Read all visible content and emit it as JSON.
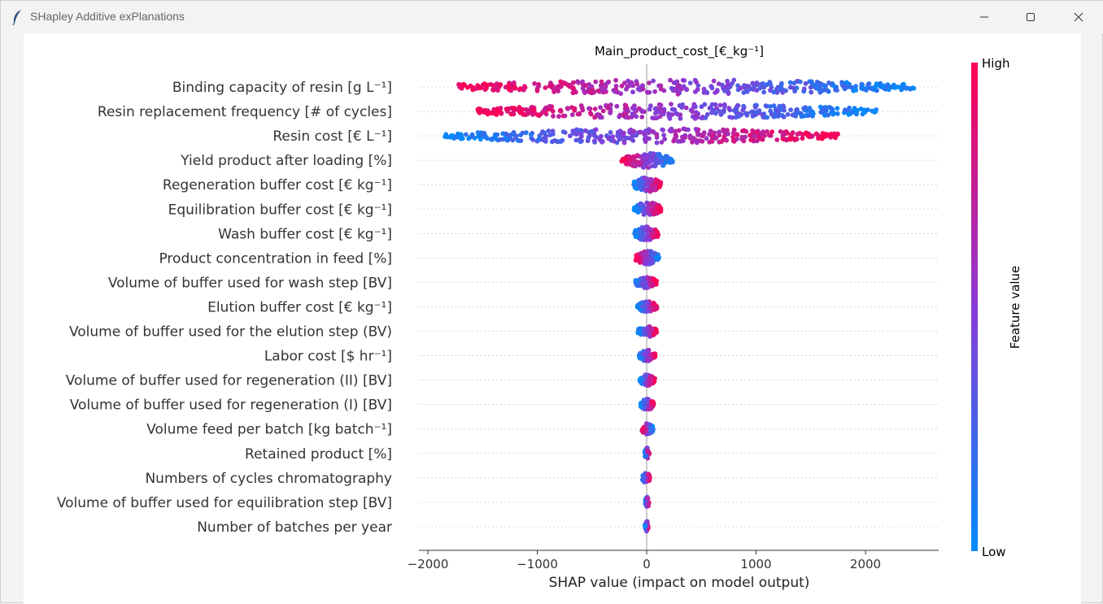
{
  "window": {
    "title": "SHapley Additive exPlanations",
    "controls": [
      "minimize",
      "maximize",
      "close"
    ]
  },
  "chart_data": {
    "type": "scatter",
    "subtype": "shap-beeswarm",
    "title": "Main_product_cost_[€_kg⁻¹]",
    "xlabel": "SHAP value (impact on model output)",
    "xlim": [
      -2000,
      2650
    ],
    "xticks": [
      -2000,
      -1000,
      0,
      1000,
      2000
    ],
    "xtick_labels": [
      "−2000",
      "−1000",
      "0",
      "1000",
      "2000"
    ],
    "colorbar": {
      "label": "Feature value",
      "high": "High",
      "low": "Low",
      "low_color": "#008bfb",
      "high_color": "#ff0052"
    },
    "features": [
      {
        "name": "Binding capacity of resin [g L⁻¹]",
        "min": -1720,
        "max": 2450,
        "dir": -1,
        "n": 380
      },
      {
        "name": "Resin replacement frequency [# of cycles]",
        "min": -1550,
        "max": 2100,
        "dir": -1,
        "n": 360
      },
      {
        "name": "Resin cost [€ L⁻¹]",
        "min": -1850,
        "max": 1760,
        "dir": 1,
        "n": 360
      },
      {
        "name": "Yield product after loading [%]",
        "min": -230,
        "max": 240,
        "dir": -1,
        "n": 120
      },
      {
        "name": "Regeneration buffer cost [€ kg⁻¹]",
        "min": -120,
        "max": 130,
        "dir": 1,
        "n": 90
      },
      {
        "name": "Equilibration buffer cost [€ kg⁻¹]",
        "min": -115,
        "max": 130,
        "dir": 1,
        "n": 90
      },
      {
        "name": "Wash buffer cost [€ kg⁻¹]",
        "min": -110,
        "max": 110,
        "dir": 1,
        "n": 85
      },
      {
        "name": "Product concentration in feed [%]",
        "min": -100,
        "max": 115,
        "dir": -1,
        "n": 85
      },
      {
        "name": "Volume of buffer used for wash step [BV]",
        "min": -105,
        "max": 90,
        "dir": 1,
        "n": 80
      },
      {
        "name": "Elution buffer cost [€ kg⁻¹]",
        "min": -85,
        "max": 95,
        "dir": 1,
        "n": 80
      },
      {
        "name": "Volume of buffer used for the elution step (BV)",
        "min": -80,
        "max": 90,
        "dir": 1,
        "n": 75
      },
      {
        "name": "Labor cost [$ hr⁻¹]",
        "min": -70,
        "max": 80,
        "dir": 1,
        "n": 70
      },
      {
        "name": "Volume of buffer used for regeneration (II) [BV]",
        "min": -65,
        "max": 75,
        "dir": 1,
        "n": 70
      },
      {
        "name": "Volume of buffer used for regeneration (I) [BV]",
        "min": -55,
        "max": 65,
        "dir": 1,
        "n": 60
      },
      {
        "name": "Volume feed per batch [kg batch⁻¹]",
        "min": -45,
        "max": 60,
        "dir": -1,
        "n": 55
      },
      {
        "name": "Retained product [%]",
        "min": -20,
        "max": 25,
        "dir": 1,
        "n": 40
      },
      {
        "name": "Numbers of cycles chromatography",
        "min": -40,
        "max": 30,
        "dir": 1,
        "n": 40
      },
      {
        "name": "Volume of buffer used for equilibration step [BV]",
        "min": -15,
        "max": 20,
        "dir": 1,
        "n": 35
      },
      {
        "name": "Number of batches per year",
        "min": -15,
        "max": 15,
        "dir": 1,
        "n": 35
      }
    ]
  }
}
